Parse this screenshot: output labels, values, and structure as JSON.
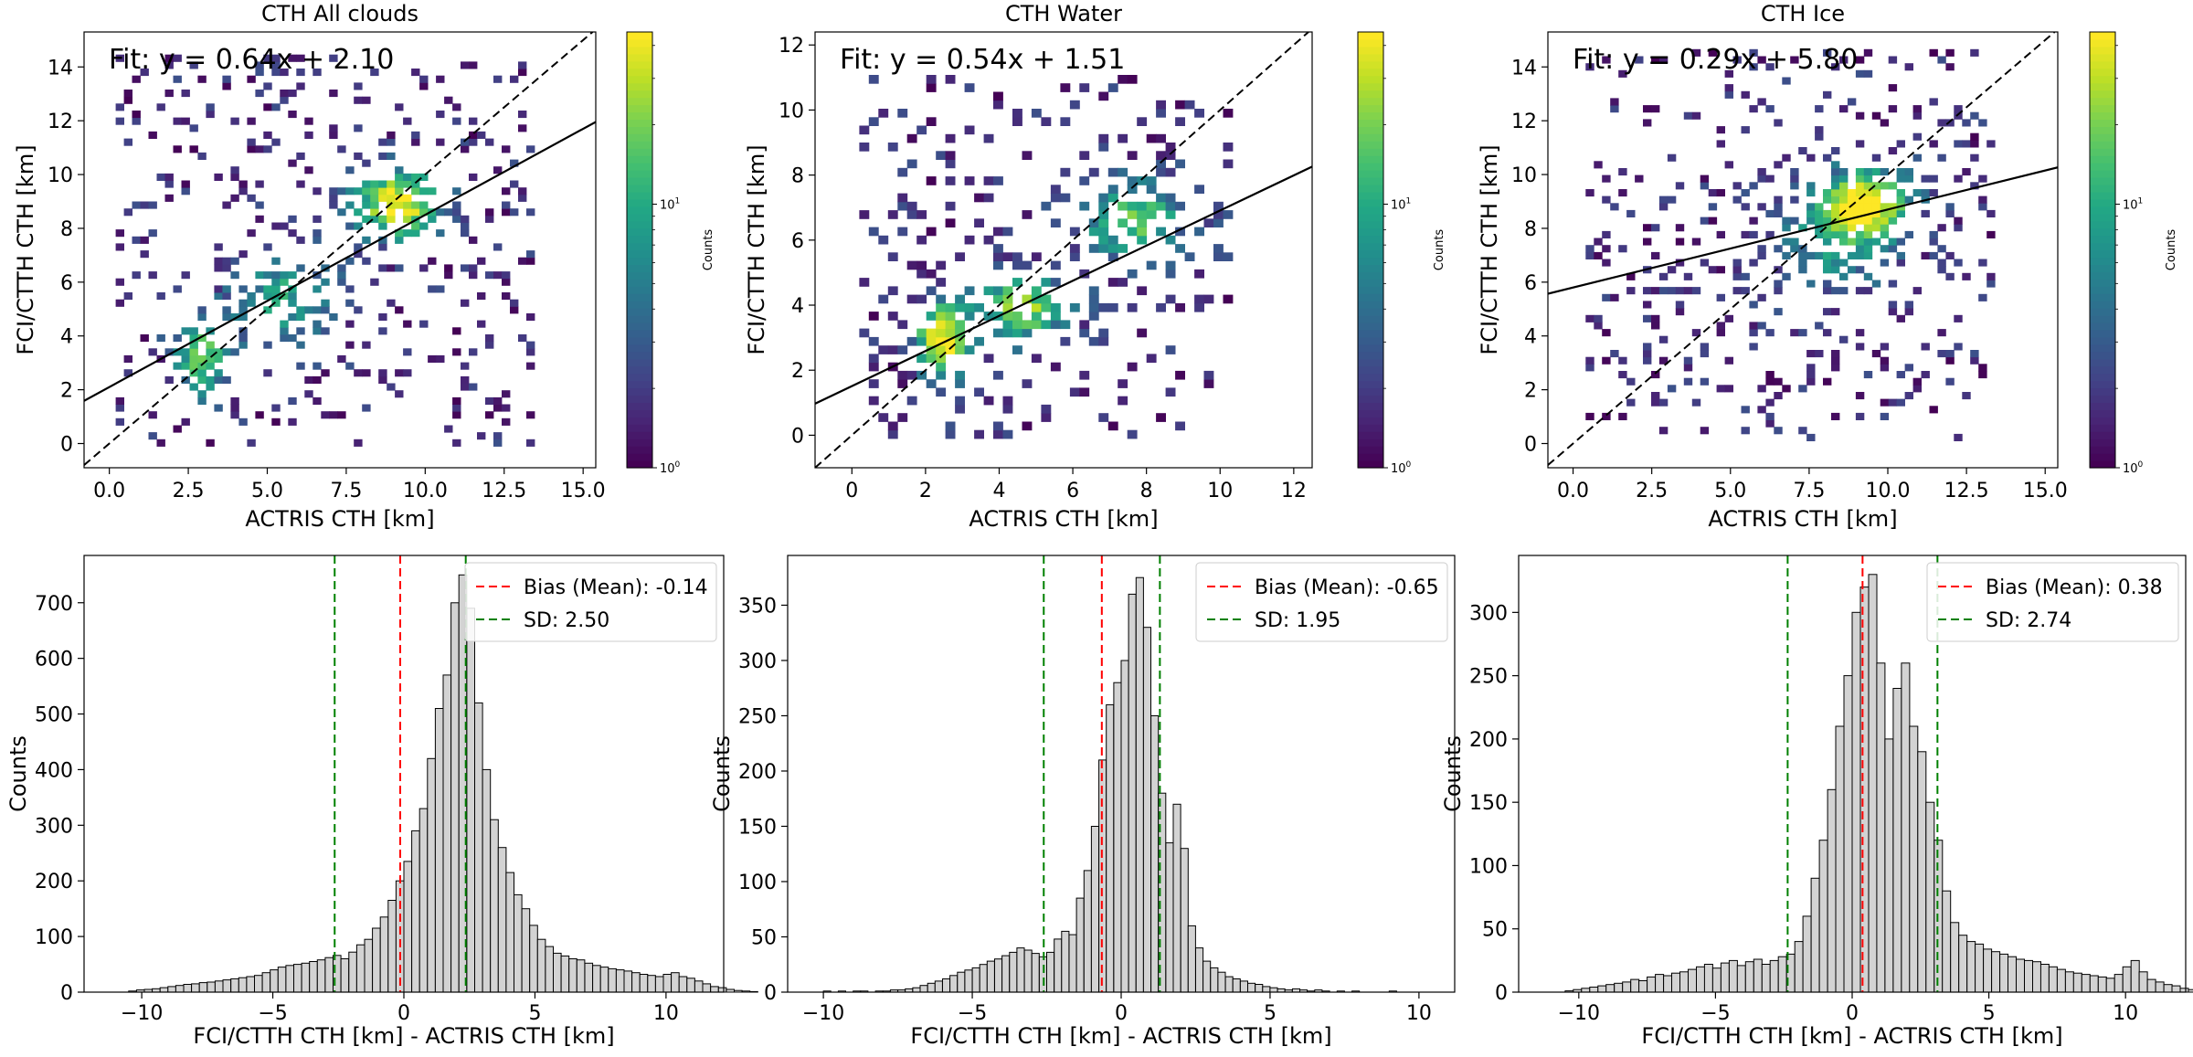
{
  "figure": {
    "background": "#ffffff"
  },
  "chart_data": [
    {
      "type": "heatmap",
      "title": "CTH All clouds",
      "xlabel": "ACTRIS CTH [km]",
      "ylabel": "FCI/CTTH CTH [km]",
      "xlim": [
        -0.8,
        15.4
      ],
      "ylim": [
        -0.9,
        15.3
      ],
      "xticks": [
        0,
        2.5,
        5,
        7.5,
        10,
        12.5,
        15
      ],
      "xtick_labels": [
        "0.0",
        "2.5",
        "5.0",
        "7.5",
        "10.0",
        "12.5",
        "15.0"
      ],
      "yticks": [
        0,
        2,
        4,
        6,
        8,
        10,
        12,
        14
      ],
      "ytick_labels": [
        "0",
        "2",
        "4",
        "6",
        "8",
        "10",
        "12",
        "14"
      ],
      "fit_text": "Fit: y = 0.64x + 2.10",
      "fit": {
        "slope": 0.64,
        "intercept": 2.1
      },
      "one_to_one_line": true,
      "colorscale": "viridis (log)",
      "colorbar": {
        "label": "Counts",
        "ticks": [
          "10^0",
          "10^1"
        ],
        "tick_values": [
          1,
          10
        ],
        "max": 45
      },
      "density_clusters": [
        {
          "x": 9.0,
          "y": 8.8,
          "sx": 1.0,
          "sy": 0.9,
          "weight": 1.0
        },
        {
          "x": 2.8,
          "y": 3.2,
          "sx": 0.6,
          "sy": 1.1,
          "weight": 0.7
        },
        {
          "x": 5.5,
          "y": 5.3,
          "sx": 1.2,
          "sy": 1.2,
          "weight": 0.5
        }
      ],
      "point_extent": {
        "x": [
          0.2,
          13.2
        ],
        "y": [
          -0.1,
          14.4
        ]
      },
      "seed": 11
    },
    {
      "type": "heatmap",
      "title": "CTH Water",
      "xlabel": "ACTRIS CTH [km]",
      "ylabel": "FCI/CTTH CTH [km]",
      "xlim": [
        -1.0,
        12.5
      ],
      "ylim": [
        -1.0,
        12.4
      ],
      "xticks": [
        0,
        2,
        4,
        6,
        8,
        10,
        12
      ],
      "xtick_labels": [
        "0",
        "2",
        "4",
        "6",
        "8",
        "10",
        "12"
      ],
      "yticks": [
        0,
        2,
        4,
        6,
        8,
        10,
        12
      ],
      "ytick_labels": [
        "0",
        "2",
        "4",
        "6",
        "8",
        "10",
        "12"
      ],
      "fit_text": "Fit: y = 0.54x + 1.51",
      "fit": {
        "slope": 0.54,
        "intercept": 1.51
      },
      "one_to_one_line": true,
      "colorscale": "viridis (log)",
      "colorbar": {
        "label": "Counts",
        "ticks": [
          "10^0",
          "10^1"
        ],
        "tick_values": [
          1,
          10
        ],
        "max": 45
      },
      "density_clusters": [
        {
          "x": 2.3,
          "y": 2.8,
          "sx": 0.5,
          "sy": 0.8,
          "weight": 1.0
        },
        {
          "x": 4.5,
          "y": 3.8,
          "sx": 0.9,
          "sy": 0.7,
          "weight": 0.8
        },
        {
          "x": 7.5,
          "y": 6.5,
          "sx": 1.0,
          "sy": 0.9,
          "weight": 0.7
        }
      ],
      "point_extent": {
        "x": [
          0.2,
          10.2
        ],
        "y": [
          -0.1,
          11.0
        ]
      },
      "seed": 23
    },
    {
      "type": "heatmap",
      "title": "CTH Ice",
      "xlabel": "ACTRIS CTH [km]",
      "ylabel": "FCI/CTTH CTH [km]",
      "xlim": [
        -0.8,
        15.4
      ],
      "ylim": [
        -0.9,
        15.3
      ],
      "xticks": [
        0,
        2.5,
        5,
        7.5,
        10,
        12.5,
        15
      ],
      "xtick_labels": [
        "0.0",
        "2.5",
        "5.0",
        "7.5",
        "10.0",
        "12.5",
        "15.0"
      ],
      "yticks": [
        0,
        2,
        4,
        6,
        8,
        10,
        12,
        14
      ],
      "ytick_labels": [
        "0",
        "2",
        "4",
        "6",
        "8",
        "10",
        "12",
        "14"
      ],
      "fit_text": "Fit: y = 0.29x + 5.80",
      "fit": {
        "slope": 0.29,
        "intercept": 5.8
      },
      "one_to_one_line": true,
      "colorscale": "viridis (log)",
      "colorbar": {
        "label": "Counts",
        "ticks": [
          "10^0",
          "10^1"
        ],
        "tick_values": [
          1,
          10
        ],
        "max": 45
      },
      "density_clusters": [
        {
          "x": 9.2,
          "y": 8.8,
          "sx": 1.0,
          "sy": 0.9,
          "weight": 1.0
        },
        {
          "x": 8.0,
          "y": 7.2,
          "sx": 1.3,
          "sy": 1.4,
          "weight": 0.4
        }
      ],
      "point_extent": {
        "x": [
          0.4,
          13.2
        ],
        "y": [
          0.1,
          14.4
        ]
      },
      "seed": 37
    },
    {
      "type": "bar",
      "subtype": "histogram",
      "xlabel": "FCI/CTTH CTH [km] - ACTRIS CTH [km]",
      "ylabel": "Counts",
      "xlim": [
        -12.2,
        12.2
      ],
      "ylim": [
        0,
        785
      ],
      "xticks": [
        -10,
        -5,
        0,
        5,
        10
      ],
      "xtick_labels": [
        "−10",
        "−5",
        "0",
        "5",
        "10"
      ],
      "yticks": [
        0,
        100,
        200,
        300,
        400,
        500,
        600,
        700
      ],
      "ytick_labels": [
        "0",
        "100",
        "200",
        "300",
        "400",
        "500",
        "600",
        "700"
      ],
      "bin_start": -10.5,
      "bin_width": 0.3,
      "counts": [
        2,
        4,
        5,
        6,
        8,
        10,
        12,
        14,
        15,
        17,
        18,
        20,
        22,
        24,
        26,
        28,
        30,
        35,
        40,
        45,
        48,
        50,
        52,
        55,
        58,
        62,
        66,
        60,
        72,
        85,
        95,
        115,
        135,
        165,
        200,
        235,
        290,
        330,
        420,
        510,
        570,
        700,
        750,
        690,
        520,
        400,
        310,
        260,
        215,
        175,
        150,
        120,
        95,
        82,
        70,
        65,
        60,
        58,
        52,
        48,
        45,
        42,
        40,
        38,
        35,
        32,
        30,
        28,
        32,
        35,
        28,
        25,
        20,
        15,
        10,
        8,
        5,
        3,
        2,
        1
      ],
      "bias_label": "Bias (Mean): -0.14",
      "bias": -0.14,
      "sd_label": "SD: 2.50",
      "sd": 2.5,
      "legend_loc": "upper right"
    },
    {
      "type": "bar",
      "subtype": "histogram",
      "xlabel": "FCI/CTTH CTH [km] - ACTRIS CTH [km]",
      "ylabel": "Counts",
      "xlim": [
        -11.2,
        11.2
      ],
      "ylim": [
        0,
        395
      ],
      "xticks": [
        -10,
        -5,
        0,
        5,
        10
      ],
      "xtick_labels": [
        "−10",
        "−5",
        "0",
        "5",
        "10"
      ],
      "yticks": [
        0,
        50,
        100,
        150,
        200,
        250,
        300,
        350
      ],
      "ytick_labels": [
        "0",
        "50",
        "100",
        "150",
        "200",
        "250",
        "300",
        "350"
      ],
      "bin_start": -10.0,
      "bin_width": 0.25,
      "counts": [
        1,
        0,
        1,
        0,
        1,
        1,
        0,
        1,
        1,
        2,
        2,
        3,
        4,
        6,
        8,
        10,
        12,
        15,
        18,
        20,
        22,
        25,
        28,
        30,
        33,
        36,
        40,
        38,
        35,
        32,
        36,
        48,
        55,
        52,
        85,
        110,
        150,
        210,
        260,
        280,
        300,
        360,
        375,
        330,
        250,
        180,
        135,
        170,
        130,
        60,
        40,
        28,
        22,
        18,
        14,
        12,
        10,
        8,
        7,
        5,
        4,
        3,
        2,
        3,
        2,
        1,
        2,
        1,
        0,
        1,
        0,
        1,
        0,
        0,
        0,
        0,
        1,
        0,
        0,
        0
      ],
      "bias_label": "Bias (Mean): -0.65",
      "bias": -0.65,
      "sd_label": "SD: 1.95",
      "sd": 1.95,
      "legend_loc": "upper right"
    },
    {
      "type": "bar",
      "subtype": "histogram",
      "xlabel": "FCI/CTTH CTH [km] - ACTRIS CTH [km]",
      "ylabel": "Counts",
      "xlim": [
        -12.2,
        12.2
      ],
      "ylim": [
        0,
        345
      ],
      "xticks": [
        -10,
        -5,
        0,
        5,
        10
      ],
      "xtick_labels": [
        "−10",
        "−5",
        "0",
        "5",
        "10"
      ],
      "yticks": [
        0,
        50,
        100,
        150,
        200,
        250,
        300
      ],
      "ytick_labels": [
        "0",
        "50",
        "100",
        "150",
        "200",
        "250",
        "300"
      ],
      "bin_start": -10.5,
      "bin_width": 0.3,
      "counts": [
        1,
        2,
        3,
        4,
        5,
        6,
        7,
        8,
        10,
        9,
        12,
        14,
        13,
        15,
        16,
        18,
        20,
        22,
        19,
        23,
        25,
        21,
        24,
        26,
        22,
        25,
        28,
        30,
        40,
        60,
        90,
        120,
        160,
        210,
        250,
        300,
        320,
        330,
        260,
        200,
        240,
        260,
        210,
        190,
        150,
        120,
        80,
        55,
        45,
        40,
        38,
        34,
        32,
        30,
        28,
        26,
        25,
        24,
        22,
        20,
        18,
        16,
        15,
        14,
        13,
        12,
        11,
        14,
        20,
        25,
        16,
        10,
        8,
        6,
        5,
        3,
        2,
        1,
        1,
        0
      ],
      "bias_label": "Bias (Mean): 0.38",
      "bias": 0.38,
      "sd_label": "SD: 2.74",
      "sd": 2.74,
      "legend_loc": "upper right"
    }
  ]
}
